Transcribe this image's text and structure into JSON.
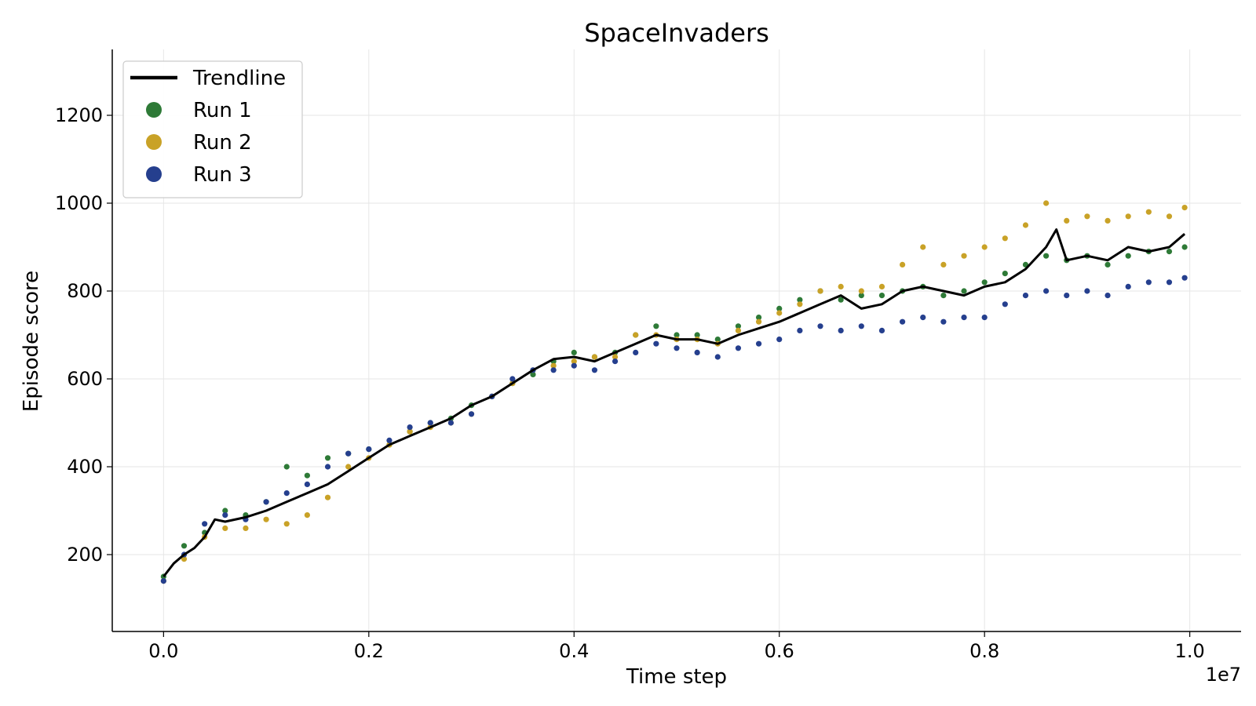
{
  "chart_data": {
    "type": "scatter",
    "title": "SpaceInvaders",
    "xlabel": "Time step",
    "ylabel": "Episode score",
    "x_offset_label": "1e7",
    "xlim": [
      -0.05,
      1.05
    ],
    "ylim": [
      25,
      1350
    ],
    "x_ticks": [
      0.0,
      0.2,
      0.4,
      0.6,
      0.8,
      1.0
    ],
    "x_tick_labels": [
      "0.0",
      "0.2",
      "0.4",
      "0.6",
      "0.8",
      "1.0"
    ],
    "y_ticks": [
      200,
      400,
      600,
      800,
      1000,
      1200
    ],
    "y_tick_labels": [
      "200",
      "400",
      "600",
      "800",
      "1000",
      "1200"
    ],
    "grid": true,
    "legend_position": "top-left",
    "legend": [
      {
        "label": "Trendline",
        "kind": "line",
        "color": "#000000"
      },
      {
        "label": "Run 1",
        "kind": "marker",
        "color": "#2e7a37"
      },
      {
        "label": "Run 2",
        "kind": "marker",
        "color": "#c9a227"
      },
      {
        "label": "Run 3",
        "kind": "marker",
        "color": "#253f8e"
      }
    ],
    "trendline": {
      "name": "Trendline",
      "color": "#000000",
      "x": [
        0.0,
        0.01,
        0.02,
        0.03,
        0.04,
        0.05,
        0.06,
        0.08,
        0.1,
        0.12,
        0.14,
        0.16,
        0.18,
        0.2,
        0.22,
        0.24,
        0.26,
        0.28,
        0.3,
        0.32,
        0.34,
        0.36,
        0.38,
        0.4,
        0.42,
        0.44,
        0.46,
        0.48,
        0.5,
        0.52,
        0.54,
        0.56,
        0.58,
        0.6,
        0.62,
        0.64,
        0.66,
        0.68,
        0.7,
        0.72,
        0.74,
        0.76,
        0.78,
        0.8,
        0.82,
        0.84,
        0.86,
        0.87,
        0.88,
        0.9,
        0.92,
        0.94,
        0.96,
        0.98,
        0.995
      ],
      "y": [
        150,
        180,
        200,
        215,
        240,
        280,
        275,
        285,
        300,
        320,
        340,
        360,
        390,
        420,
        450,
        470,
        490,
        510,
        540,
        560,
        590,
        620,
        645,
        650,
        640,
        660,
        680,
        700,
        690,
        690,
        680,
        700,
        715,
        730,
        750,
        770,
        790,
        760,
        770,
        800,
        810,
        800,
        790,
        810,
        820,
        850,
        900,
        940,
        870,
        880,
        870,
        900,
        890,
        900,
        930
      ]
    },
    "series": [
      {
        "name": "Run 1",
        "color": "#2e7a37",
        "x": [
          0.0,
          0.02,
          0.04,
          0.06,
          0.08,
          0.1,
          0.12,
          0.14,
          0.16,
          0.18,
          0.2,
          0.22,
          0.24,
          0.26,
          0.28,
          0.3,
          0.32,
          0.34,
          0.36,
          0.38,
          0.4,
          0.42,
          0.44,
          0.46,
          0.48,
          0.5,
          0.52,
          0.54,
          0.56,
          0.58,
          0.6,
          0.62,
          0.64,
          0.66,
          0.68,
          0.7,
          0.72,
          0.74,
          0.76,
          0.78,
          0.8,
          0.82,
          0.84,
          0.86,
          0.88,
          0.9,
          0.92,
          0.94,
          0.96,
          0.98,
          0.995
        ],
        "y": [
          150,
          220,
          250,
          300,
          290,
          320,
          400,
          380,
          420,
          430,
          440,
          450,
          480,
          500,
          510,
          540,
          560,
          590,
          610,
          640,
          660,
          650,
          660,
          700,
          720,
          700,
          700,
          690,
          720,
          740,
          760,
          780,
          800,
          780,
          790,
          790,
          800,
          810,
          790,
          800,
          820,
          840,
          860,
          880,
          870,
          880,
          860,
          880,
          890,
          890,
          900
        ]
      },
      {
        "name": "Run 2",
        "color": "#c9a227",
        "x": [
          0.0,
          0.02,
          0.04,
          0.06,
          0.08,
          0.1,
          0.12,
          0.14,
          0.16,
          0.18,
          0.2,
          0.22,
          0.24,
          0.26,
          0.28,
          0.3,
          0.32,
          0.34,
          0.36,
          0.38,
          0.4,
          0.42,
          0.44,
          0.46,
          0.48,
          0.5,
          0.52,
          0.54,
          0.56,
          0.58,
          0.6,
          0.62,
          0.64,
          0.66,
          0.68,
          0.7,
          0.72,
          0.74,
          0.76,
          0.78,
          0.8,
          0.82,
          0.84,
          0.86,
          0.88,
          0.9,
          0.92,
          0.94,
          0.96,
          0.98,
          0.995
        ],
        "y": [
          140,
          190,
          240,
          260,
          260,
          280,
          270,
          290,
          330,
          400,
          420,
          450,
          480,
          490,
          500,
          520,
          560,
          590,
          620,
          630,
          640,
          650,
          650,
          700,
          700,
          690,
          690,
          680,
          710,
          730,
          750,
          770,
          800,
          810,
          800,
          810,
          860,
          900,
          860,
          880,
          900,
          920,
          950,
          1000,
          960,
          970,
          960,
          970,
          980,
          970,
          990
        ]
      },
      {
        "name": "Run 3",
        "color": "#253f8e",
        "x": [
          0.0,
          0.02,
          0.04,
          0.06,
          0.08,
          0.1,
          0.12,
          0.14,
          0.16,
          0.18,
          0.2,
          0.22,
          0.24,
          0.26,
          0.28,
          0.3,
          0.32,
          0.34,
          0.36,
          0.38,
          0.4,
          0.42,
          0.44,
          0.46,
          0.48,
          0.5,
          0.52,
          0.54,
          0.56,
          0.58,
          0.6,
          0.62,
          0.64,
          0.66,
          0.68,
          0.7,
          0.72,
          0.74,
          0.76,
          0.78,
          0.8,
          0.82,
          0.84,
          0.86,
          0.88,
          0.9,
          0.92,
          0.94,
          0.96,
          0.98,
          0.995
        ],
        "y": [
          140,
          200,
          270,
          290,
          280,
          320,
          340,
          360,
          400,
          430,
          440,
          460,
          490,
          500,
          500,
          520,
          560,
          600,
          620,
          620,
          630,
          620,
          640,
          660,
          680,
          670,
          660,
          650,
          670,
          680,
          690,
          710,
          720,
          710,
          720,
          710,
          730,
          740,
          730,
          740,
          740,
          770,
          790,
          800,
          790,
          800,
          790,
          810,
          820,
          820,
          830
        ]
      }
    ]
  }
}
